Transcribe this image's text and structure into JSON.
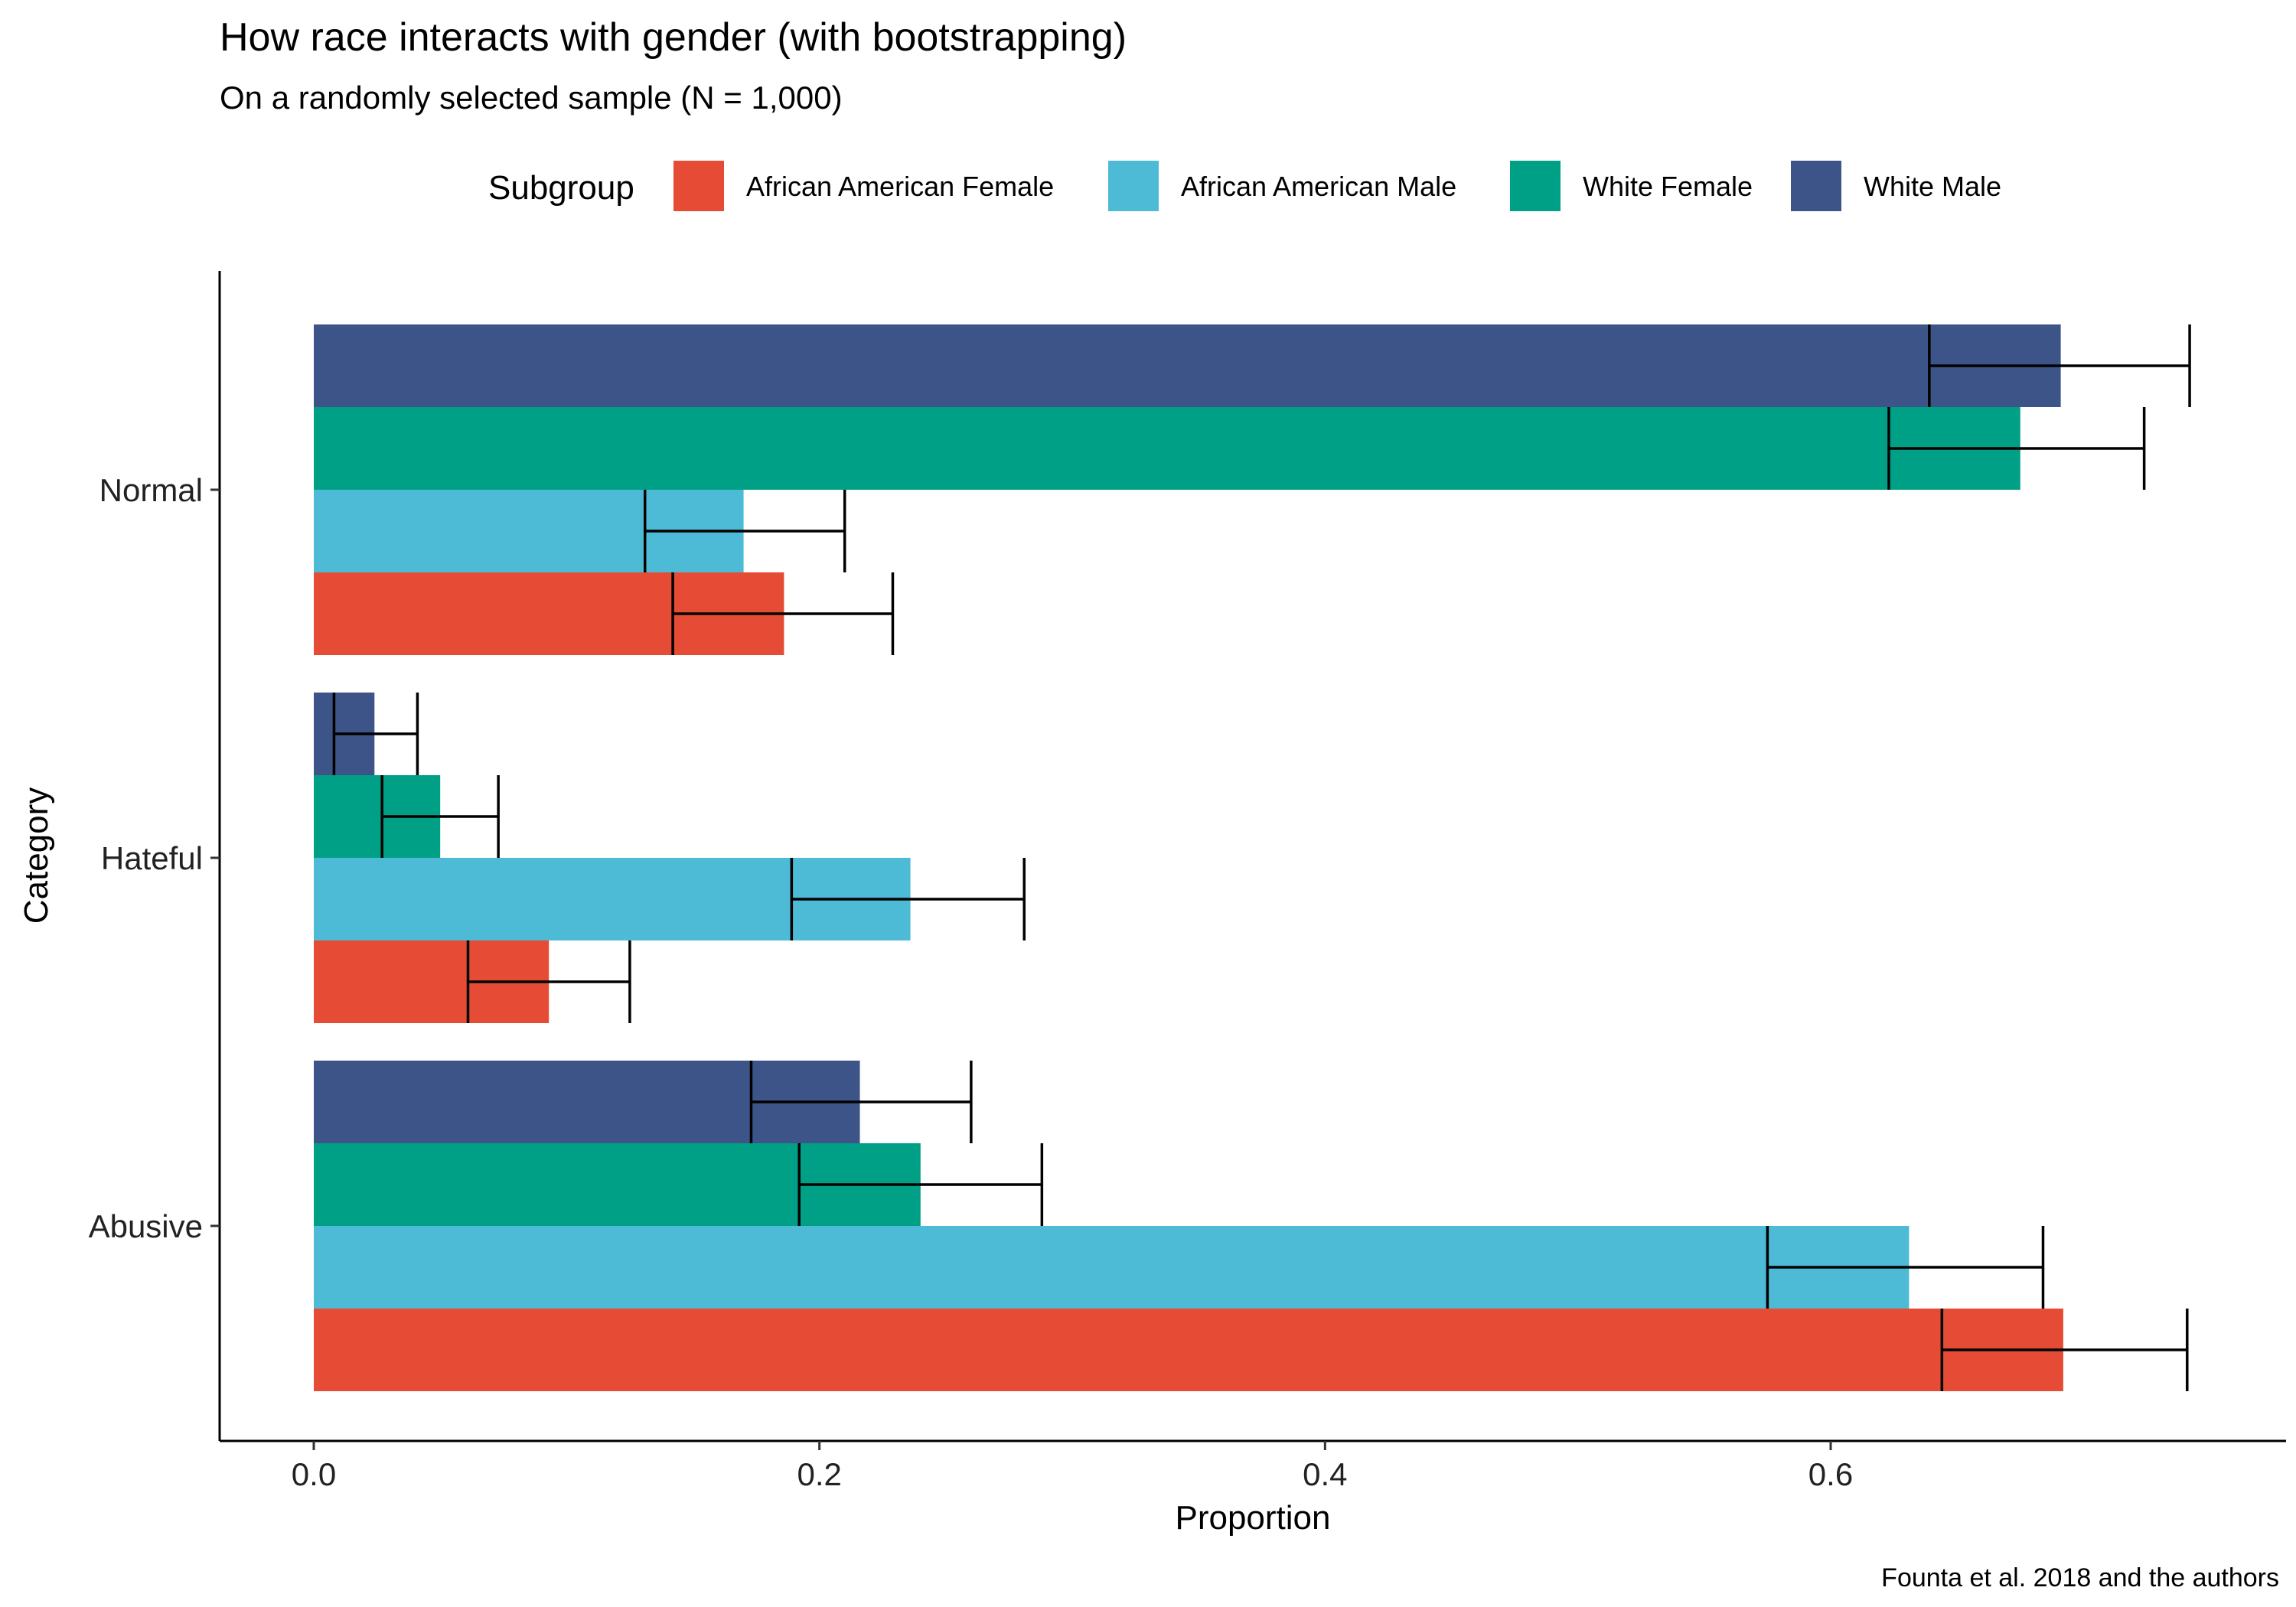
{
  "chart_data": {
    "type": "bar",
    "orientation": "horizontal",
    "title": "How race interacts with gender (with bootstrapping)",
    "subtitle": "On a randomly selected sample (N = 1,000)",
    "caption": "Founta et al. 2018 and the authors",
    "xlabel": "Proportion",
    "ylabel": "Category",
    "xlim": [
      -0.037,
      0.775
    ],
    "x_ticks": [
      0.0,
      0.2,
      0.4,
      0.6
    ],
    "x_tick_labels": [
      "0.0",
      "0.2",
      "0.4",
      "0.6"
    ],
    "categories": [
      "Normal",
      "Hateful",
      "Abusive"
    ],
    "legend": {
      "title": "Subgroup",
      "position": "top"
    },
    "grid": false,
    "series": [
      {
        "name": "African American Female",
        "color": "#E64B35",
        "values": [
          0.186,
          0.093,
          0.692
        ],
        "ci_low": [
          0.142,
          0.061,
          0.644
        ],
        "ci_high": [
          0.229,
          0.125,
          0.741
        ]
      },
      {
        "name": "African American Male",
        "color": "#4DBBD5",
        "values": [
          0.17,
          0.236,
          0.631
        ],
        "ci_low": [
          0.131,
          0.189,
          0.575
        ],
        "ci_high": [
          0.21,
          0.281,
          0.684
        ]
      },
      {
        "name": "White Female",
        "color": "#00A087",
        "values": [
          0.675,
          0.05,
          0.24
        ],
        "ci_low": [
          0.623,
          0.027,
          0.192
        ],
        "ci_high": [
          0.724,
          0.073,
          0.288
        ]
      },
      {
        "name": "White Male",
        "color": "#3C5488",
        "values": [
          0.691,
          0.024,
          0.216
        ],
        "ci_low": [
          0.639,
          0.008,
          0.173
        ],
        "ci_high": [
          0.742,
          0.041,
          0.26
        ]
      }
    ]
  }
}
